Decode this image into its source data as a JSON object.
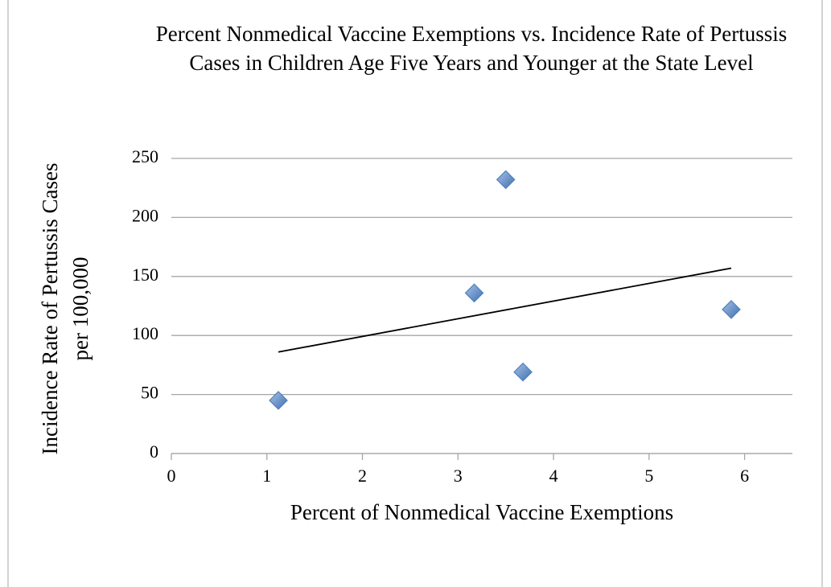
{
  "chart_data": {
    "type": "scatter",
    "title": "Percent Nonmedical Vaccine Exemptions vs. Incidence Rate of Pertussis Cases in Children Age Five Years and Younger at the State Level",
    "x_label": "Percent of Nonmedical Vaccine Exemptions",
    "y_label": "Incidence Rate of Pertussis Cases per 100,000",
    "x": [
      1.12,
      3.17,
      3.5,
      3.68,
      5.86
    ],
    "values": [
      45,
      136,
      232,
      69,
      122
    ],
    "color": "#4f81bd",
    "trendline": {
      "x": [
        1.12,
        5.86
      ],
      "values": [
        86,
        157
      ],
      "color": "#000000"
    },
    "xlim": [
      0,
      6.5
    ],
    "xticks": [
      0,
      1,
      2,
      3,
      4,
      5,
      6
    ],
    "ylim": [
      0,
      250
    ],
    "yticks": [
      0,
      50,
      100,
      150,
      200,
      250
    ],
    "grid": true
  }
}
